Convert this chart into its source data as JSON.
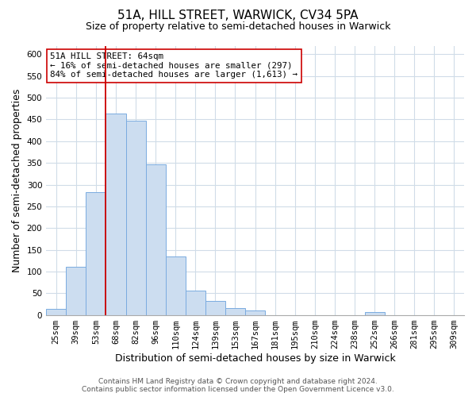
{
  "title": "51A, HILL STREET, WARWICK, CV34 5PA",
  "subtitle": "Size of property relative to semi-detached houses in Warwick",
  "xlabel": "Distribution of semi-detached houses by size in Warwick",
  "ylabel": "Number of semi-detached properties",
  "categories": [
    "25sqm",
    "39sqm",
    "53sqm",
    "68sqm",
    "82sqm",
    "96sqm",
    "110sqm",
    "124sqm",
    "139sqm",
    "153sqm",
    "167sqm",
    "181sqm",
    "195sqm",
    "210sqm",
    "224sqm",
    "238sqm",
    "252sqm",
    "266sqm",
    "281sqm",
    "295sqm",
    "309sqm"
  ],
  "values": [
    13,
    110,
    283,
    463,
    447,
    346,
    134,
    56,
    33,
    16,
    10,
    0,
    0,
    0,
    0,
    0,
    7,
    0,
    0,
    0,
    0
  ],
  "bar_color": "#ccddf0",
  "bar_edge_color": "#7aabe0",
  "property_line_color": "#cc0000",
  "property_line_bin": 3,
  "annotation_title": "51A HILL STREET: 64sqm",
  "annotation_line1": "← 16% of semi-detached houses are smaller (297)",
  "annotation_line2": "84% of semi-detached houses are larger (1,613) →",
  "annotation_box_color": "#ffffff",
  "annotation_box_edge": "#cc0000",
  "ylim": [
    0,
    620
  ],
  "yticks": [
    0,
    50,
    100,
    150,
    200,
    250,
    300,
    350,
    400,
    450,
    500,
    550,
    600
  ],
  "footer_line1": "Contains HM Land Registry data © Crown copyright and database right 2024.",
  "footer_line2": "Contains public sector information licensed under the Open Government Licence v3.0.",
  "background_color": "#ffffff",
  "grid_color": "#d0dce8",
  "title_fontsize": 11,
  "subtitle_fontsize": 9,
  "axis_label_fontsize": 9,
  "tick_fontsize": 7.5,
  "footer_fontsize": 6.5
}
